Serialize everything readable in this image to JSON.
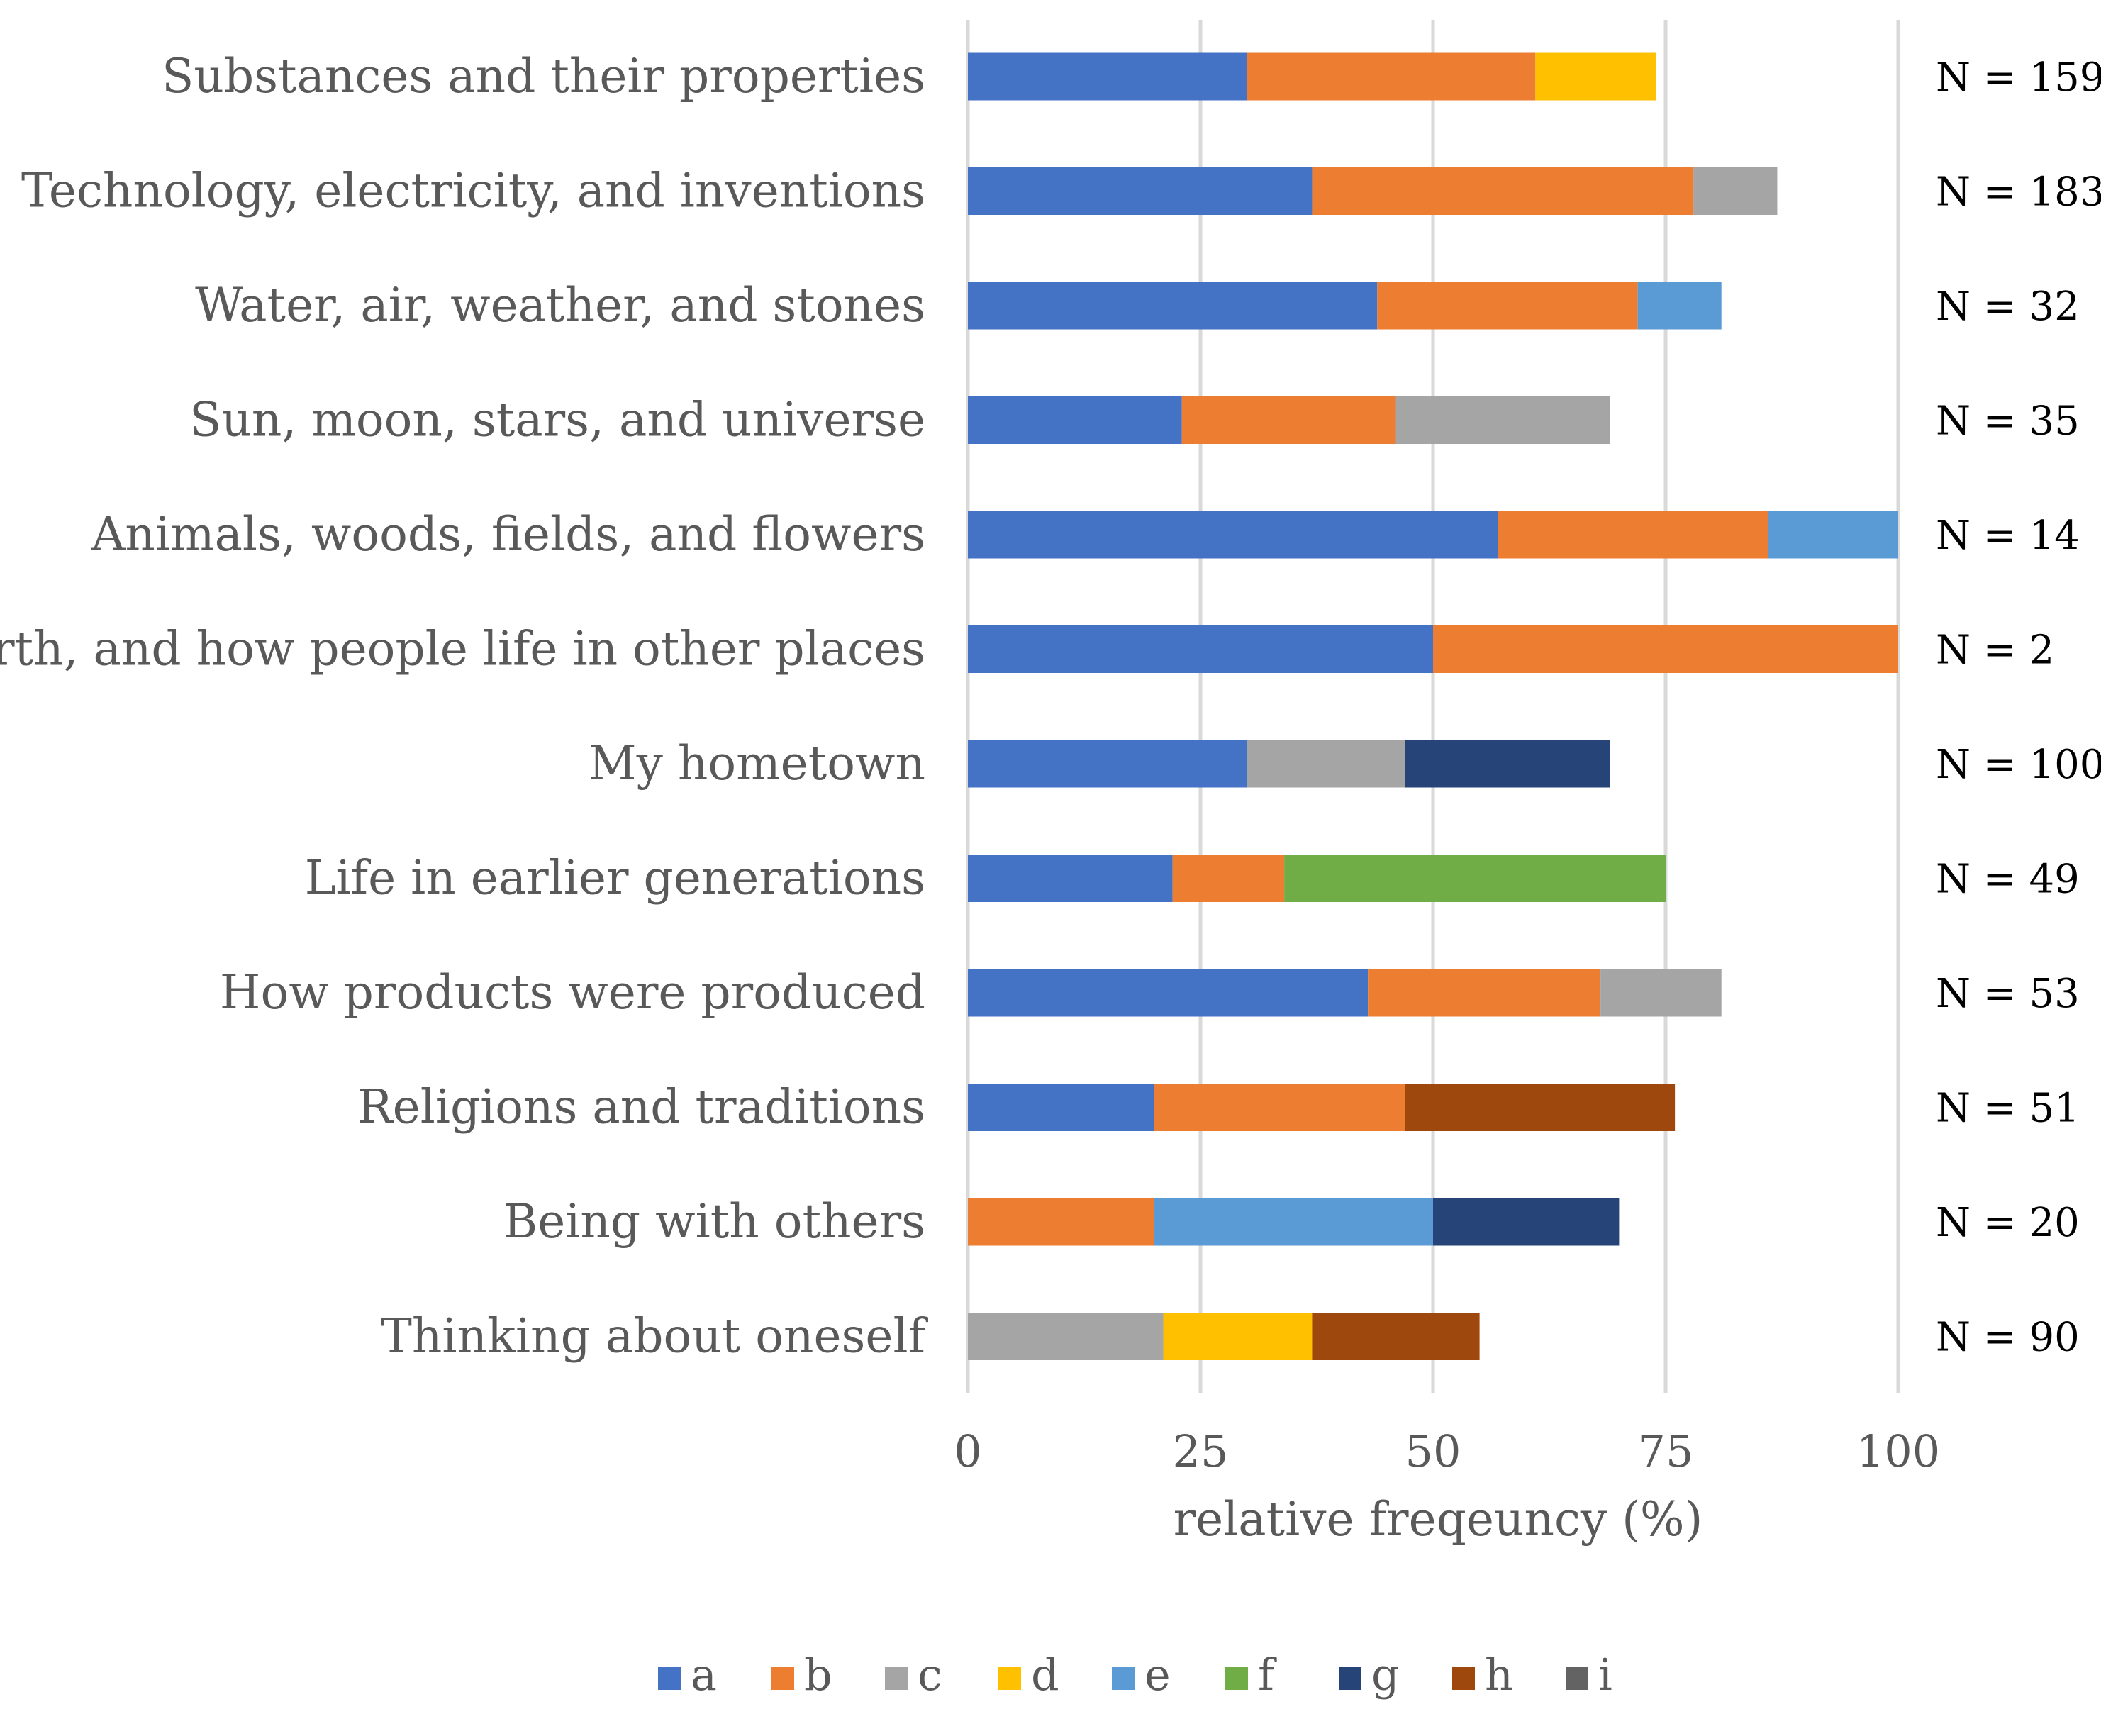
{
  "chart_data": {
    "type": "bar",
    "orientation": "horizontal",
    "stacked": true,
    "xlabel": "relative freqeuncy (%)",
    "ylabel": "",
    "xlim": [
      0,
      100
    ],
    "x_ticks": [
      0,
      25,
      50,
      75,
      100
    ],
    "grid": true,
    "legend_position": "bottom",
    "categories": [
      "Substances and their properties",
      "Technology, electricity, and inventions",
      "Water, air, weather, and stones",
      "Sun, moon, stars, and universe",
      "Animals, woods, fields, and flowers",
      "Earth, and how people life in other places",
      "My hometown",
      "Life in earlier generations",
      "How products were produced",
      "Religions and traditions",
      "Being with others",
      "Thinking about oneself"
    ],
    "n_labels": [
      "N = 159",
      "N = 183",
      "N = 32",
      "N = 35",
      "N = 14",
      "N = 2",
      "N = 100",
      "N = 49",
      "N = 53",
      "N = 51",
      "N = 20",
      "N = 90"
    ],
    "series": [
      {
        "name": "a",
        "color": "#4472C4",
        "values": [
          30,
          37,
          44,
          23,
          57,
          50,
          30,
          22,
          43,
          20,
          0,
          0
        ]
      },
      {
        "name": "b",
        "color": "#ED7D31",
        "values": [
          31,
          41,
          28,
          23,
          29,
          50,
          0,
          12,
          25,
          27,
          20,
          0
        ]
      },
      {
        "name": "c",
        "color": "#A5A5A5",
        "values": [
          0,
          9,
          0,
          23,
          0,
          0,
          17,
          0,
          13,
          0,
          0,
          21
        ]
      },
      {
        "name": "d",
        "color": "#FFC000",
        "values": [
          13,
          0,
          0,
          0,
          0,
          0,
          0,
          0,
          0,
          0,
          0,
          16
        ]
      },
      {
        "name": "e",
        "color": "#5B9BD5",
        "values": [
          0,
          0,
          9,
          0,
          14,
          0,
          0,
          0,
          0,
          0,
          30,
          0
        ]
      },
      {
        "name": "f",
        "color": "#70AD47",
        "values": [
          0,
          0,
          0,
          0,
          0,
          0,
          0,
          41,
          0,
          0,
          0,
          0
        ]
      },
      {
        "name": "g",
        "color": "#264478",
        "values": [
          0,
          0,
          0,
          0,
          0,
          0,
          22,
          0,
          0,
          0,
          20,
          0
        ]
      },
      {
        "name": "h",
        "color": "#9E480E",
        "values": [
          0,
          0,
          0,
          0,
          0,
          0,
          0,
          0,
          0,
          29,
          0,
          18
        ]
      },
      {
        "name": "i",
        "color": "#636363",
        "values": [
          0,
          0,
          0,
          0,
          0,
          0,
          0,
          0,
          0,
          0,
          0,
          0
        ]
      }
    ]
  }
}
